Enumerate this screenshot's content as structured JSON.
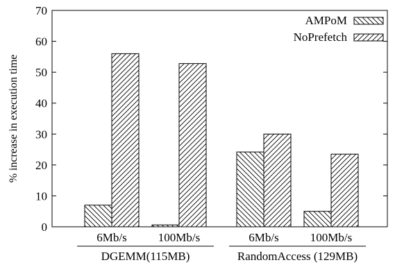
{
  "chart_data": {
    "type": "bar",
    "ylabel": "% increase in execution time",
    "ylim": [
      0,
      70
    ],
    "yticks": [
      0,
      10,
      20,
      30,
      40,
      50,
      60,
      70
    ],
    "grid": false,
    "legend_position": "top-right",
    "categories": [
      "6Mb/s",
      "100Mb/s",
      "6Mb/s",
      "100Mb/s"
    ],
    "groups": [
      {
        "label": "DGEMM(115MB)",
        "categories": [
          0,
          1
        ]
      },
      {
        "label": "RandomAccess (129MB)",
        "categories": [
          2,
          3
        ]
      }
    ],
    "series": [
      {
        "name": "AMPoM",
        "hatch": "backslash",
        "values": [
          7,
          0.6,
          24.2,
          5
        ]
      },
      {
        "name": "NoPrefetch",
        "hatch": "slash",
        "values": [
          56,
          52.8,
          30,
          23.5
        ]
      }
    ]
  }
}
